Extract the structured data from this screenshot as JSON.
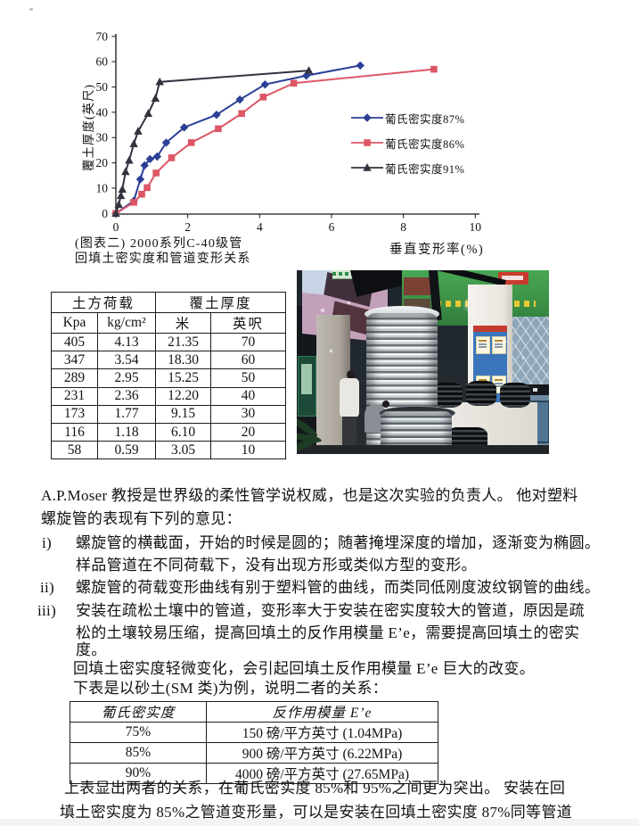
{
  "chart_data": {
    "type": "line",
    "title": "",
    "xlabel": "垂直变形率(%)",
    "ylabel": "覆土厚度(英尺)",
    "xlim": [
      0,
      10
    ],
    "ylim": [
      0,
      70
    ],
    "xticks": [
      0,
      2,
      4,
      6,
      8,
      10
    ],
    "yticks": [
      0,
      10,
      20,
      30,
      40,
      50,
      60,
      70
    ],
    "grid": false,
    "legend_position": "right-middle",
    "series": [
      {
        "name": "葡氏密实度87%",
        "color": "#2b3f96",
        "marker": "diamond",
        "points": [
          [
            0,
            0
          ],
          [
            0.5,
            5
          ],
          [
            0.68,
            13.5
          ],
          [
            0.8,
            19
          ],
          [
            0.95,
            21.5
          ],
          [
            1.15,
            22.5
          ],
          [
            1.4,
            28
          ],
          [
            1.9,
            34
          ],
          [
            2.8,
            39
          ],
          [
            3.45,
            45
          ],
          [
            4.15,
            51
          ],
          [
            5.3,
            54.5
          ],
          [
            6.8,
            58.5
          ]
        ]
      },
      {
        "name": "葡氏密实度86%",
        "color": "#dd5666",
        "marker": "square",
        "points": [
          [
            0,
            0
          ],
          [
            0.5,
            4.4
          ],
          [
            0.72,
            7.6
          ],
          [
            0.87,
            10.2
          ],
          [
            1.12,
            16
          ],
          [
            1.55,
            22
          ],
          [
            2.1,
            28
          ],
          [
            2.85,
            33.5
          ],
          [
            3.5,
            39.5
          ],
          [
            4.1,
            46
          ],
          [
            4.95,
            51.5
          ],
          [
            8.85,
            57
          ]
        ]
      },
      {
        "name": "葡氏密实度91%",
        "color": "#33333f",
        "marker": "triangle",
        "points": [
          [
            0,
            0
          ],
          [
            0.08,
            3.5
          ],
          [
            0.14,
            7
          ],
          [
            0.18,
            9.5
          ],
          [
            0.27,
            16.5
          ],
          [
            0.37,
            21
          ],
          [
            0.5,
            27.5
          ],
          [
            0.62,
            32.5
          ],
          [
            0.9,
            39.5
          ],
          [
            1.1,
            45.5
          ],
          [
            1.22,
            52
          ],
          [
            5.37,
            56.5
          ]
        ]
      }
    ],
    "caption": [
      "(图表二) 2000系列C-40级管",
      "回填土密实度和管道变形关系"
    ]
  },
  "table1": {
    "group_headers": [
      "土方荷载",
      "覆土厚度"
    ],
    "col_headers": [
      "Kpa",
      "kg/cm²",
      "米",
      "英呎"
    ],
    "rows": [
      [
        "405",
        "4.13",
        "21.35",
        "70"
      ],
      [
        "347",
        "3.54",
        "18.30",
        "60"
      ],
      [
        "289",
        "2.95",
        "15.25",
        "50"
      ],
      [
        "231",
        "2.36",
        "12.20",
        "40"
      ],
      [
        "173",
        "1.77",
        "9.15",
        "30"
      ],
      [
        "116",
        "1.18",
        "6.10",
        "20"
      ],
      [
        "58",
        "0.59",
        "3.05",
        "10"
      ]
    ]
  },
  "body": {
    "intro_l1": "A.P.Moser 教授是世界级的柔性管学说权威，也是这次实验的负责人。  他对塑料",
    "intro_l2": "螺旋管的表现有下列的意见：",
    "item1_marker": "i)",
    "item1_l1": "螺旋管的横截面，开始的时候是圆的；随著掩埋深度的增加，逐渐变为椭圆。",
    "item1_l2": "样品管道在不同荷载下，没有出现方形或类似方型的变形。",
    "item2_marker": "ii)",
    "item2_l1": "螺旋管的荷载变形曲线有别于塑料管的曲线，而类同低刚度波纹钢管的曲线。",
    "item3_marker": "iii)",
    "item3_l1": "安装在疏松土壤中的管道，变形率大于安装在密实度较大的管道，原因是疏",
    "item3_l2": "松的土壤较易压缩，提高回填土的反作用模量 E’e，需要提高回填土的密实",
    "item3_l3": "度。",
    "note_l1": "回填土密实度轻微变化，会引起回填土反作用模量 E’e 巨大的改变。",
    "note_l2": "下表是以砂土(SM 类)为例，说明二者的关系：",
    "post_l1": "上表显出两者的关系，在葡氏密实度 85%和 95%之间更为突出。  安装在回",
    "post_l2": "填土密实度为 85%之管道变形量，可以是安装在回填土密实度 87%同等管道"
  },
  "table2": {
    "headers": [
      "葡氏密实度",
      "反作用模量 E’e"
    ],
    "rows": [
      [
        "75%",
        "150 磅/平方英寸  (1.04MPa)"
      ],
      [
        "85%",
        "900 磅/平方英寸  (6.22MPa)"
      ],
      [
        "90%",
        "4000 磅/平方英寸  (27.65MPa)"
      ]
    ]
  }
}
